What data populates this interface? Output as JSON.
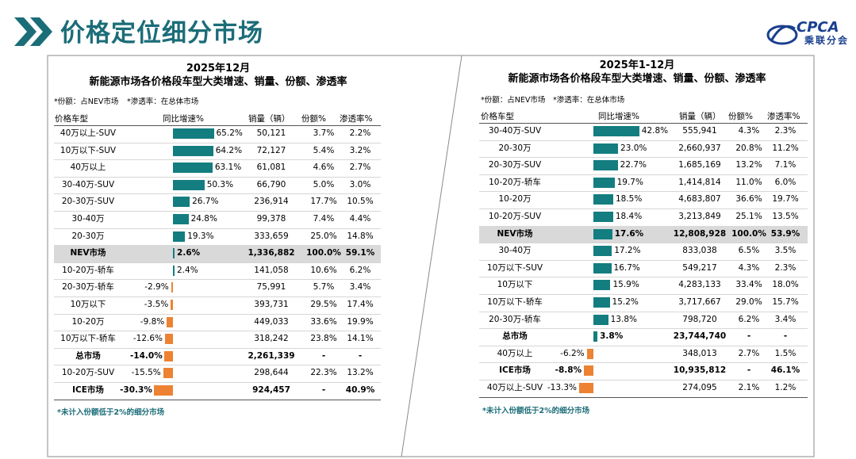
{
  "header": {
    "title": "价格定位细分市场",
    "logo_abbr": "CPCA",
    "logo_text": "乘联分会"
  },
  "left_panel": {
    "title_line1": "2025年12月",
    "title_line2": "新能源市场各价格段车型大类增速、销量、份额、渗透率",
    "note1": "*份额：占NEV市场",
    "note2": "*渗透率：在总体市场",
    "footnote": "*未计入份额低于2%的细分市场",
    "columns": [
      "价格车型",
      "同比增速%",
      "销量（辆）",
      "份额%",
      "渗透率%"
    ]
  },
  "right_panel": {
    "title_line1": "2025年1-12月",
    "title_line2": "新能源市场各价格段车型大类增速、销量、份额、渗透率",
    "note1": "*份额：占NEV市场",
    "note2": "*渗透率：在总体市场",
    "footnote": "*未计入份额低于2%的细分市场",
    "columns": [
      "价格车型",
      "同比增速%",
      "销量（辆）",
      "份额%",
      "渗透率%"
    ]
  },
  "colors": {
    "teal": "#137d80",
    "orange": "#ed8233",
    "title": "#1b6d78",
    "highlight": "#d9d9d9"
  },
  "chart_data": [
    {
      "type": "table",
      "title": "2025年12月 新能源市场各价格段车型大类增速、销量、份额、渗透率",
      "bar_column": "同比增速%",
      "rows": [
        {
          "name": "40万以上-SUV",
          "growth": 65.2,
          "growth_label": "65.2%",
          "sales": "50,121",
          "share": "3.7%",
          "pen": "2.2%"
        },
        {
          "name": "10万以下-SUV",
          "growth": 64.2,
          "growth_label": "64.2%",
          "sales": "72,127",
          "share": "5.4%",
          "pen": "3.2%"
        },
        {
          "name": "40万以上",
          "growth": 63.1,
          "growth_label": "63.1%",
          "sales": "61,081",
          "share": "4.6%",
          "pen": "2.7%"
        },
        {
          "name": "30-40万-SUV",
          "growth": 50.3,
          "growth_label": "50.3%",
          "sales": "66,790",
          "share": "5.0%",
          "pen": "3.0%"
        },
        {
          "name": "20-30万-SUV",
          "growth": 26.7,
          "growth_label": "26.7%",
          "sales": "236,914",
          "share": "17.7%",
          "pen": "10.5%"
        },
        {
          "name": "30-40万",
          "growth": 24.8,
          "growth_label": "24.8%",
          "sales": "99,378",
          "share": "7.4%",
          "pen": "4.4%"
        },
        {
          "name": "20-30万",
          "growth": 19.3,
          "growth_label": "19.3%",
          "sales": "333,659",
          "share": "25.0%",
          "pen": "14.8%"
        },
        {
          "name": "NEV市场",
          "growth": 2.6,
          "growth_label": "2.6%",
          "sales": "1,336,882",
          "share": "100.0%",
          "pen": "59.1%",
          "highlight": true,
          "bold": true
        },
        {
          "name": "10-20万-轿车",
          "growth": 2.4,
          "growth_label": "2.4%",
          "sales": "141,058",
          "share": "10.6%",
          "pen": "6.2%"
        },
        {
          "name": "20-30万-轿车",
          "growth": -2.9,
          "growth_label": "-2.9%",
          "sales": "75,991",
          "share": "5.7%",
          "pen": "3.4%"
        },
        {
          "name": "10万以下",
          "growth": -3.5,
          "growth_label": "-3.5%",
          "sales": "393,731",
          "share": "29.5%",
          "pen": "17.4%"
        },
        {
          "name": "10-20万",
          "growth": -9.8,
          "growth_label": "-9.8%",
          "sales": "449,033",
          "share": "33.6%",
          "pen": "19.9%"
        },
        {
          "name": "10万以下-轿车",
          "growth": -12.6,
          "growth_label": "-12.6%",
          "sales": "318,242",
          "share": "23.8%",
          "pen": "14.1%"
        },
        {
          "name": "总市场",
          "growth": -14.0,
          "growth_label": "-14.0%",
          "sales": "2,261,339",
          "share": "-",
          "pen": "-",
          "bold": true
        },
        {
          "name": "10-20万-SUV",
          "growth": -15.5,
          "growth_label": "-15.5%",
          "sales": "298,644",
          "share": "22.3%",
          "pen": "13.2%"
        },
        {
          "name": "ICE市场",
          "growth": -30.3,
          "growth_label": "-30.3%",
          "sales": "924,457",
          "share": "-",
          "pen": "40.9%",
          "bold": true
        }
      ]
    },
    {
      "type": "table",
      "title": "2025年1-12月 新能源市场各价格段车型大类增速、销量、份额、渗透率",
      "bar_column": "同比增速%",
      "rows": [
        {
          "name": "30-40万-SUV",
          "growth": 42.8,
          "growth_label": "42.8%",
          "sales": "555,941",
          "share": "4.3%",
          "pen": "2.3%"
        },
        {
          "name": "20-30万",
          "growth": 23.0,
          "growth_label": "23.0%",
          "sales": "2,660,937",
          "share": "20.8%",
          "pen": "11.2%"
        },
        {
          "name": "20-30万-SUV",
          "growth": 22.7,
          "growth_label": "22.7%",
          "sales": "1,685,169",
          "share": "13.2%",
          "pen": "7.1%"
        },
        {
          "name": "10-20万-轿车",
          "growth": 19.7,
          "growth_label": "19.7%",
          "sales": "1,414,814",
          "share": "11.0%",
          "pen": "6.0%"
        },
        {
          "name": "10-20万",
          "growth": 18.5,
          "growth_label": "18.5%",
          "sales": "4,683,807",
          "share": "36.6%",
          "pen": "19.7%"
        },
        {
          "name": "10-20万-SUV",
          "growth": 18.4,
          "growth_label": "18.4%",
          "sales": "3,213,849",
          "share": "25.1%",
          "pen": "13.5%"
        },
        {
          "name": "NEV市场",
          "growth": 17.6,
          "growth_label": "17.6%",
          "sales": "12,808,928",
          "share": "100.0%",
          "pen": "53.9%",
          "highlight": true,
          "bold": true
        },
        {
          "name": "30-40万",
          "growth": 17.2,
          "growth_label": "17.2%",
          "sales": "833,038",
          "share": "6.5%",
          "pen": "3.5%"
        },
        {
          "name": "10万以下-SUV",
          "growth": 16.7,
          "growth_label": "16.7%",
          "sales": "549,217",
          "share": "4.3%",
          "pen": "2.3%"
        },
        {
          "name": "10万以下",
          "growth": 15.9,
          "growth_label": "15.9%",
          "sales": "4,283,133",
          "share": "33.4%",
          "pen": "18.0%"
        },
        {
          "name": "10万以下-轿车",
          "growth": 15.2,
          "growth_label": "15.2%",
          "sales": "3,717,667",
          "share": "29.0%",
          "pen": "15.7%"
        },
        {
          "name": "20-30万-轿车",
          "growth": 13.8,
          "growth_label": "13.8%",
          "sales": "798,720",
          "share": "6.2%",
          "pen": "3.4%"
        },
        {
          "name": "总市场",
          "growth": 3.8,
          "growth_label": "3.8%",
          "sales": "23,744,740",
          "share": "-",
          "pen": "-",
          "bold": true
        },
        {
          "name": "40万以上",
          "growth": -6.2,
          "growth_label": "-6.2%",
          "sales": "348,013",
          "share": "2.7%",
          "pen": "1.5%"
        },
        {
          "name": "ICE市场",
          "growth": -8.8,
          "growth_label": "-8.8%",
          "sales": "10,935,812",
          "share": "-",
          "pen": "46.1%",
          "bold": true
        },
        {
          "name": "40万以上-SUV",
          "growth": -13.3,
          "growth_label": "-13.3%",
          "sales": "274,095",
          "share": "2.1%",
          "pen": "1.2%"
        }
      ]
    }
  ]
}
